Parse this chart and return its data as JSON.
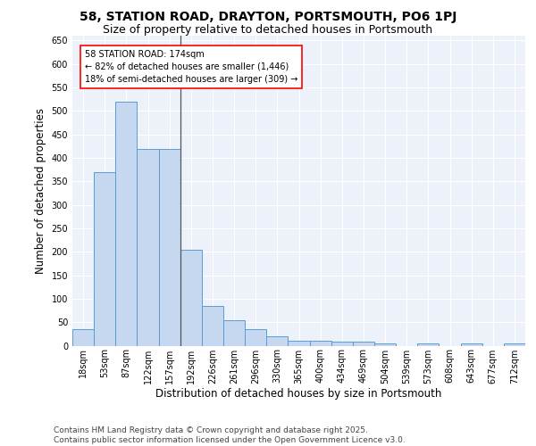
{
  "title_line1": "58, STATION ROAD, DRAYTON, PORTSMOUTH, PO6 1PJ",
  "title_line2": "Size of property relative to detached houses in Portsmouth",
  "xlabel": "Distribution of detached houses by size in Portsmouth",
  "ylabel": "Number of detached properties",
  "categories": [
    "18sqm",
    "53sqm",
    "87sqm",
    "122sqm",
    "157sqm",
    "192sqm",
    "226sqm",
    "261sqm",
    "296sqm",
    "330sqm",
    "365sqm",
    "400sqm",
    "434sqm",
    "469sqm",
    "504sqm",
    "539sqm",
    "573sqm",
    "608sqm",
    "643sqm",
    "677sqm",
    "712sqm"
  ],
  "values": [
    35,
    370,
    520,
    418,
    418,
    205,
    85,
    55,
    35,
    20,
    10,
    10,
    8,
    8,
    5,
    0,
    5,
    0,
    5,
    0,
    5
  ],
  "bar_color": "#c5d8f0",
  "bar_edge_color": "#5b9bd5",
  "annotation_text": "58 STATION ROAD: 174sqm\n← 82% of detached houses are smaller (1,446)\n18% of semi-detached houses are larger (309) →",
  "annotation_box_color": "white",
  "annotation_box_edge_color": "red",
  "ref_line_x": 4.5,
  "ylim": [
    0,
    660
  ],
  "yticks": [
    0,
    50,
    100,
    150,
    200,
    250,
    300,
    350,
    400,
    450,
    500,
    550,
    600,
    650
  ],
  "background_color": "#edf2fa",
  "grid_color": "white",
  "footnote_line1": "Contains HM Land Registry data © Crown copyright and database right 2025.",
  "footnote_line2": "Contains public sector information licensed under the Open Government Licence v3.0.",
  "title_fontsize": 10,
  "subtitle_fontsize": 9,
  "axis_label_fontsize": 8.5,
  "tick_fontsize": 7,
  "annotation_fontsize": 7,
  "footnote_fontsize": 6.5
}
